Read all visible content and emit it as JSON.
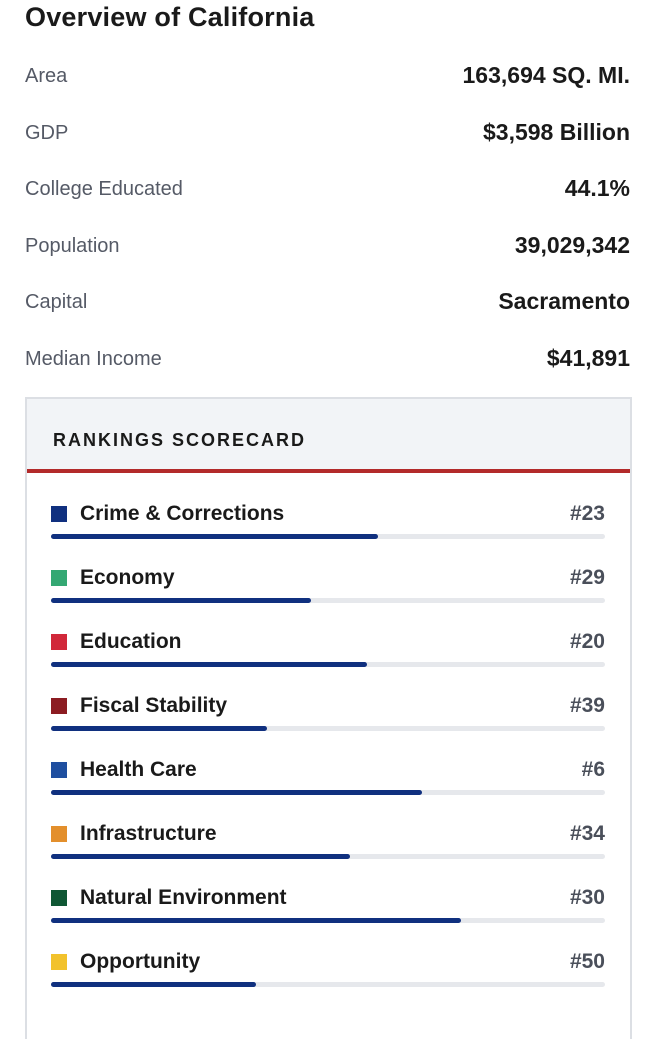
{
  "page": {
    "title": "Overview of California"
  },
  "facts": [
    {
      "label": "Area",
      "value": "163,694 SQ. MI."
    },
    {
      "label": "GDP",
      "value": "$3,598 Billion"
    },
    {
      "label": "College Educated",
      "value": "44.1%"
    },
    {
      "label": "Population",
      "value": "39,029,342"
    },
    {
      "label": "Capital",
      "value": "Sacramento"
    },
    {
      "label": "Median Income",
      "value": "$41,891"
    }
  ],
  "scorecard": {
    "title": "RANKINGS SCORECARD",
    "accent_color": "#b32a2a",
    "bar_color": "#10307f",
    "items": [
      {
        "label": "Crime & Corrections",
        "rank": "#23",
        "color": "#10307f",
        "fill_fraction": 0.59
      },
      {
        "label": "Economy",
        "rank": "#29",
        "color": "#34a873",
        "fill_fraction": 0.47
      },
      {
        "label": "Education",
        "rank": "#20",
        "color": "#d1283a",
        "fill_fraction": 0.57
      },
      {
        "label": "Fiscal Stability",
        "rank": "#39",
        "color": "#8c1c22",
        "fill_fraction": 0.39
      },
      {
        "label": "Health Care",
        "rank": "#6",
        "color": "#1f4fa0",
        "fill_fraction": 0.67
      },
      {
        "label": "Infrastructure",
        "rank": "#34",
        "color": "#e38f2c",
        "fill_fraction": 0.54
      },
      {
        "label": "Natural Environment",
        "rank": "#30",
        "color": "#0f5734",
        "fill_fraction": 0.74
      },
      {
        "label": "Opportunity",
        "rank": "#50",
        "color": "#f2c22c",
        "fill_fraction": 0.37
      }
    ]
  }
}
